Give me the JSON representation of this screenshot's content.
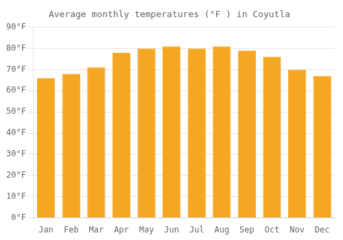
{
  "chart_data": {
    "type": "bar",
    "title": "Average monthly temperatures (°F ) in Coyutla",
    "categories": [
      "Jan",
      "Feb",
      "Mar",
      "Apr",
      "May",
      "Jun",
      "Jul",
      "Aug",
      "Sep",
      "Oct",
      "Nov",
      "Dec"
    ],
    "values": [
      66,
      68,
      71,
      78,
      80,
      81,
      80,
      81,
      79,
      76,
      70,
      67
    ],
    "color": "#F5A623",
    "ylim": [
      0,
      90
    ],
    "yticks": [
      {
        "value": 0,
        "label": "0°F"
      },
      {
        "value": 10,
        "label": "10°F"
      },
      {
        "value": 20,
        "label": "20°F"
      },
      {
        "value": 30,
        "label": "30°F"
      },
      {
        "value": 40,
        "label": "40°F"
      },
      {
        "value": 50,
        "label": "50°F"
      },
      {
        "value": 60,
        "label": "60°F"
      },
      {
        "value": 70,
        "label": "70°F"
      },
      {
        "value": 80,
        "label": "80°F"
      },
      {
        "value": 90,
        "label": "90°F"
      }
    ],
    "grid": true
  }
}
